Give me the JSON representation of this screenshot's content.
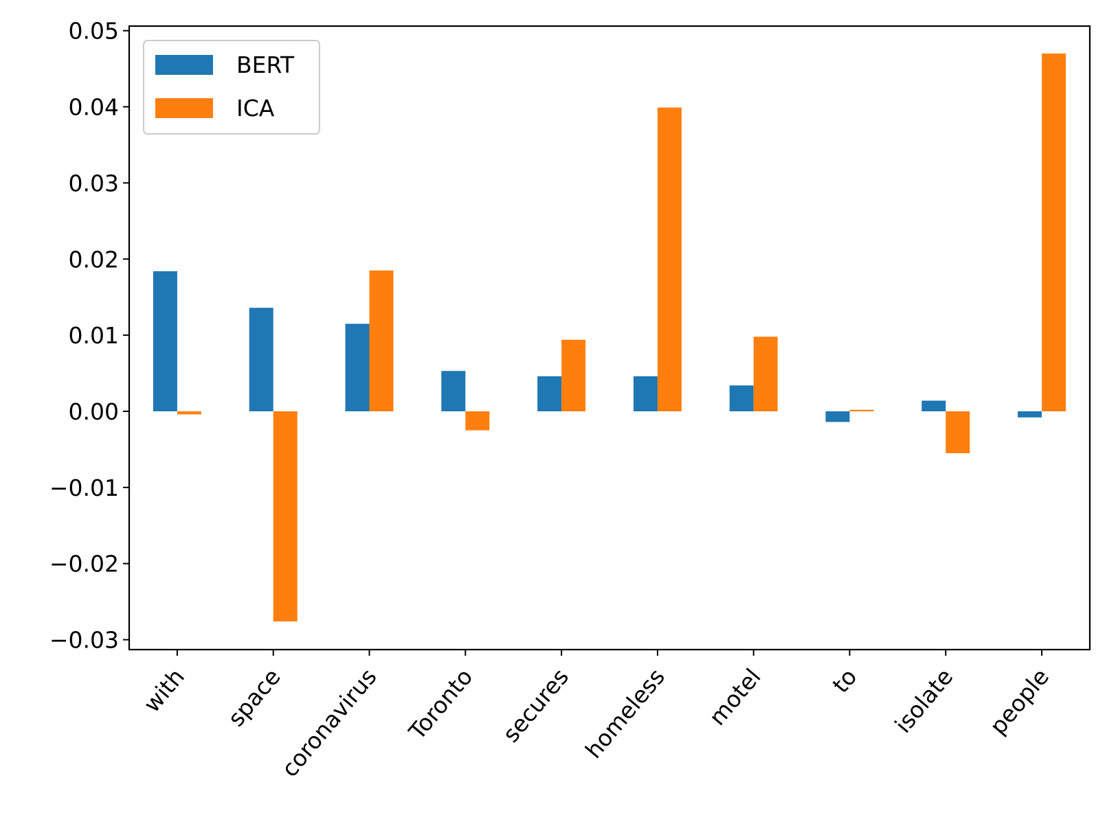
{
  "chart_data": {
    "type": "bar",
    "title": "",
    "xlabel": "",
    "ylabel": "",
    "categories": [
      "with",
      "space",
      "coronavirus",
      "Toronto",
      "secures",
      "homeless",
      "motel",
      "to",
      "isolate",
      "people"
    ],
    "series": [
      {
        "name": "BERT",
        "color": "#1f77b4",
        "values": [
          0.0184,
          0.0136,
          0.0115,
          0.0053,
          0.0046,
          0.0046,
          0.0034,
          -0.0014,
          0.0014,
          -0.0008
        ]
      },
      {
        "name": "ICA",
        "color": "#ff7f0e",
        "values": [
          -0.0004,
          -0.0276,
          0.0185,
          -0.0025,
          0.0094,
          0.0399,
          0.0098,
          0.0002,
          -0.0055,
          0.047
        ]
      }
    ],
    "yticks": [
      0.05,
      0.04,
      0.03,
      0.02,
      0.01,
      0.0,
      -0.01,
      -0.02,
      -0.03
    ],
    "ytick_labels": [
      "0.05",
      "0.04",
      "0.03",
      "0.02",
      "0.01",
      "0.00",
      "−0.01",
      "−0.02",
      "−0.03"
    ],
    "ylim": [
      -0.0313,
      0.0506
    ],
    "grid": false,
    "legend_position": "top-left"
  }
}
